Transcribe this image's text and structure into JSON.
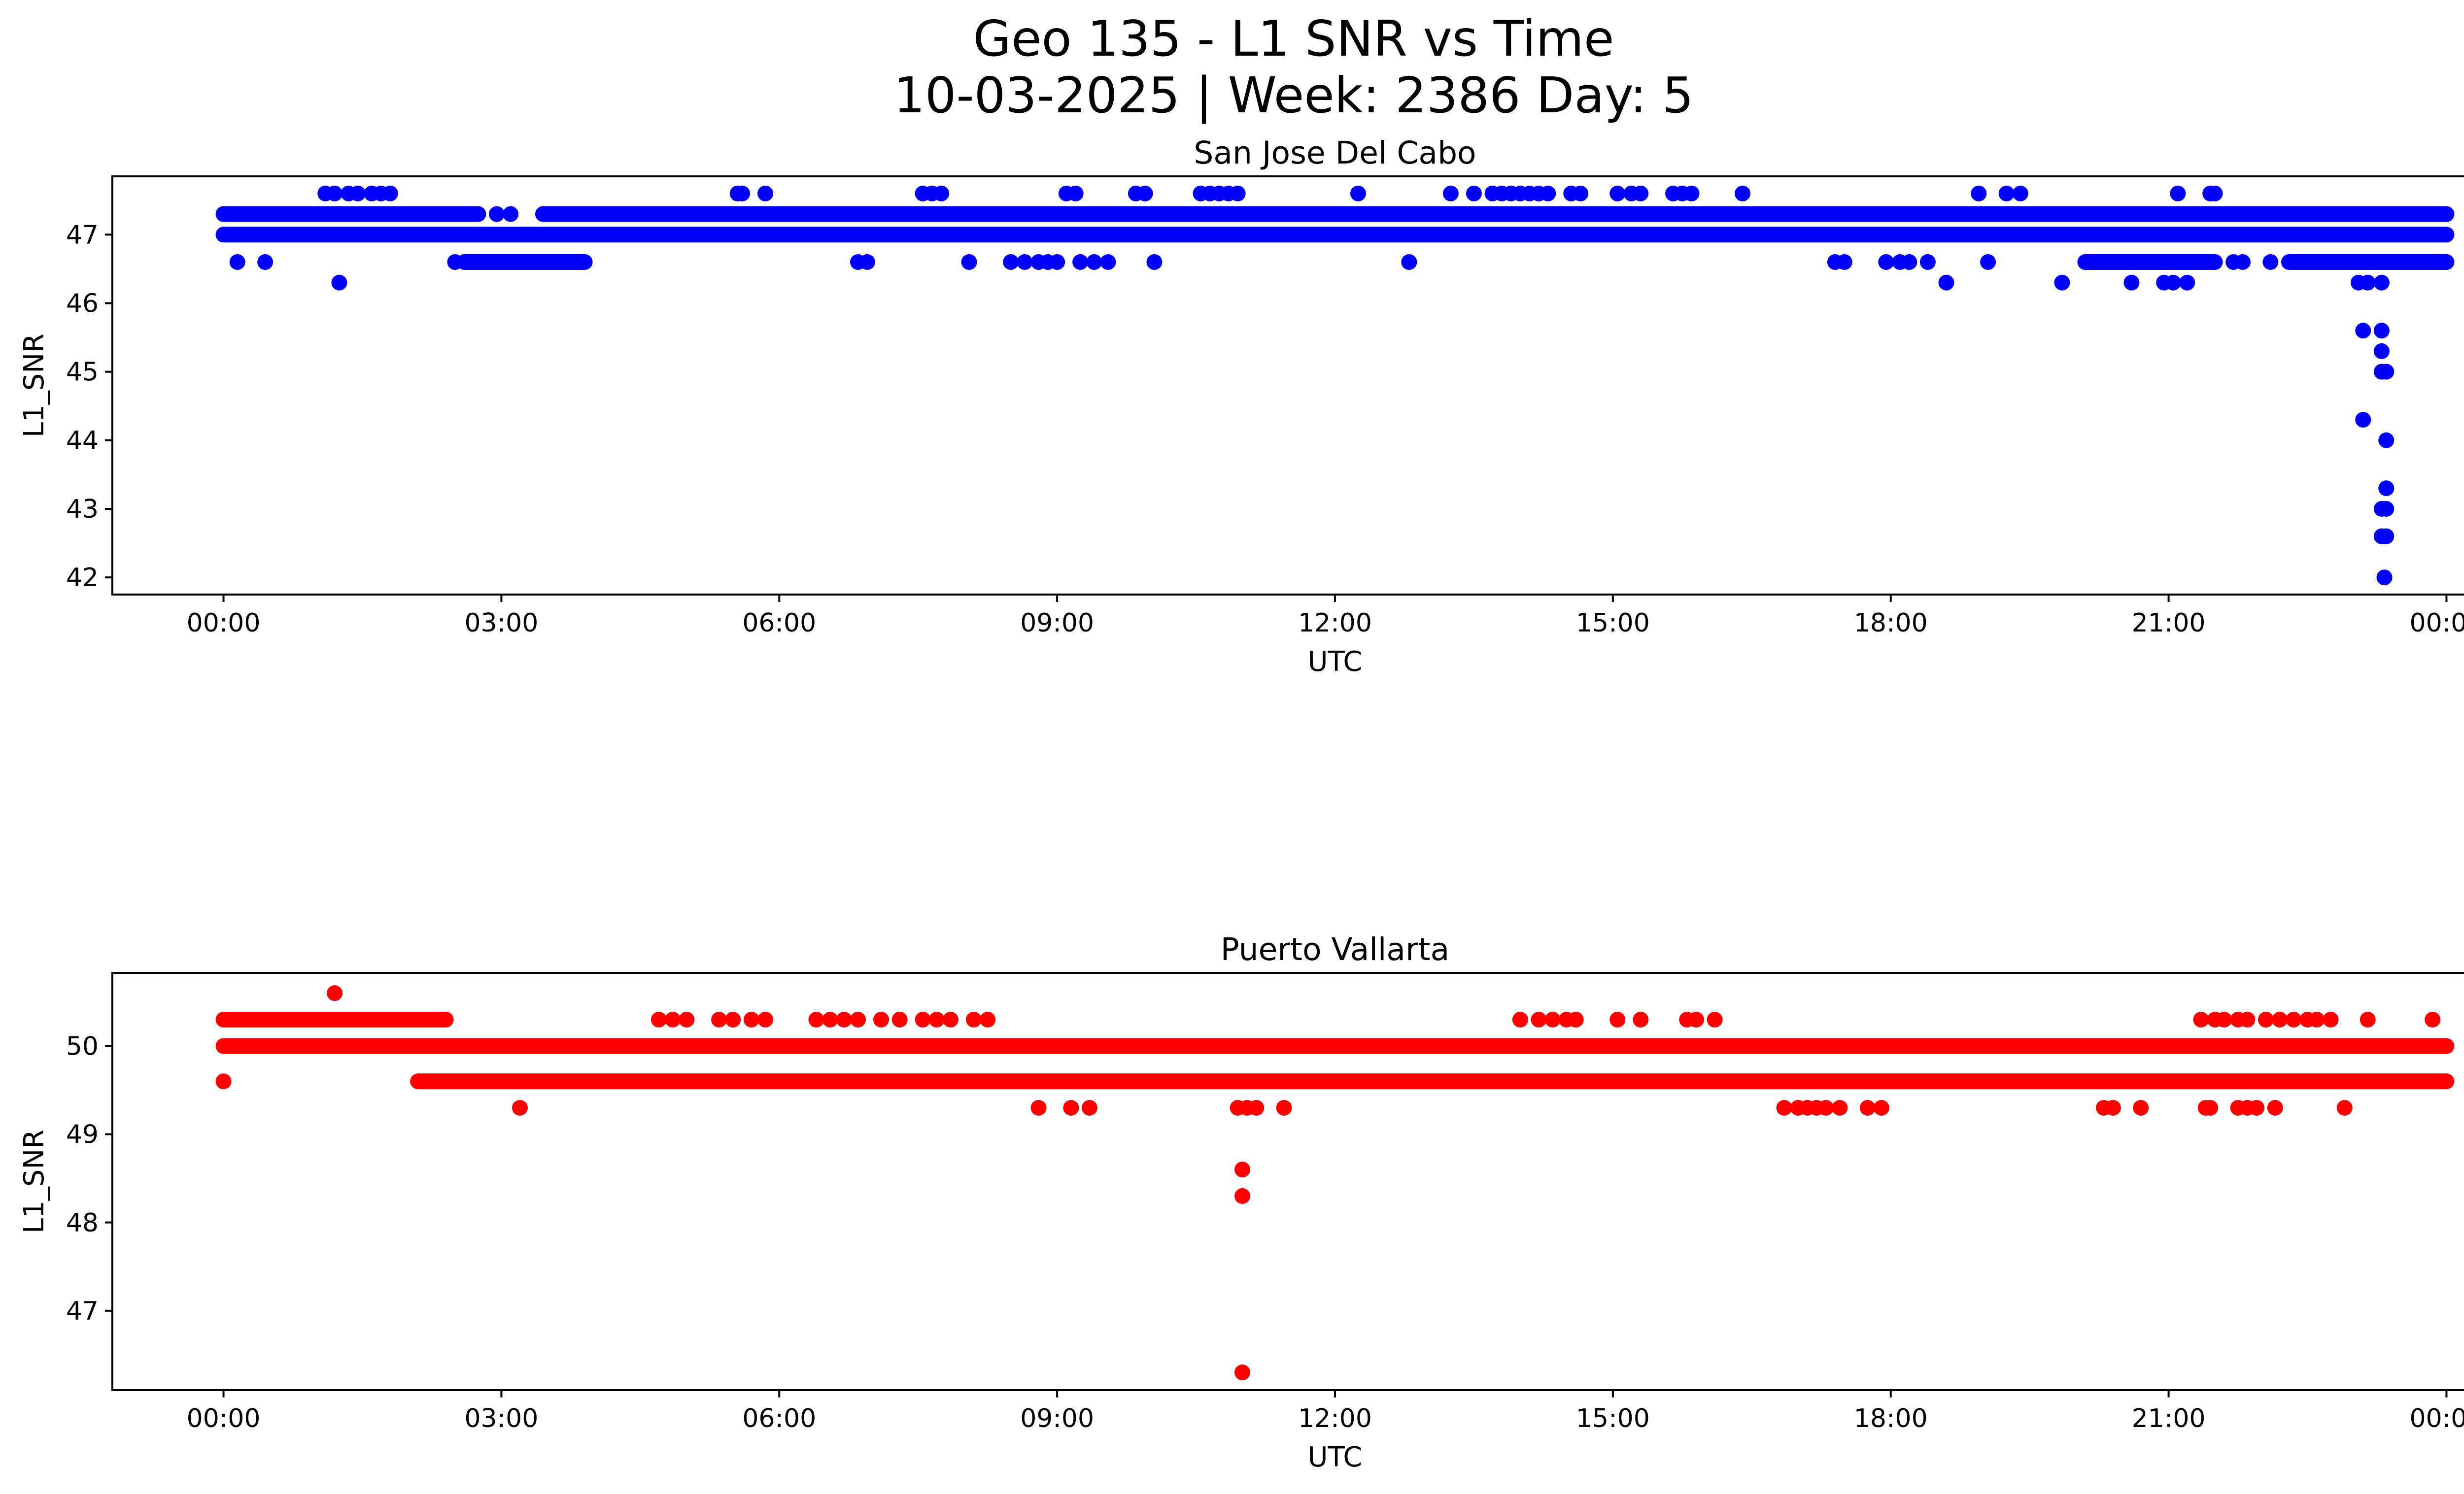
{
  "figure": {
    "title_line1": "Geo 135 - L1 SNR vs Time",
    "title_line2": "10-03-2025 | Week: 2386 Day: 5"
  },
  "chart_data": [
    {
      "type": "scatter",
      "title": "San Jose Del Cabo",
      "xlabel": "UTC",
      "ylabel": "L1_SNR",
      "color": "#0000ff",
      "xlim": [
        -1.2,
        25.2
      ],
      "ylim": [
        41.75,
        47.85
      ],
      "x_ticks": [
        0,
        3,
        6,
        9,
        12,
        15,
        18,
        21,
        24
      ],
      "x_tick_labels": [
        "00:00",
        "03:00",
        "06:00",
        "09:00",
        "12:00",
        "15:00",
        "18:00",
        "21:00",
        "00:00"
      ],
      "y_ticks": [
        42,
        43,
        44,
        45,
        46,
        47
      ],
      "y_tick_labels": [
        "42",
        "43",
        "44",
        "45",
        "46",
        "47"
      ],
      "bands": [
        {
          "y": 47.0,
          "from": 0.0,
          "to": 24.0
        },
        {
          "y": 47.3,
          "from": 0.0,
          "to": 2.75
        },
        {
          "y": 47.3,
          "from": 3.45,
          "to": 10.5
        },
        {
          "y": 47.3,
          "from": 10.5,
          "to": 24.0
        },
        {
          "y": 46.6,
          "from": 2.6,
          "to": 3.9
        },
        {
          "y": 46.6,
          "from": 20.1,
          "to": 21.5
        },
        {
          "y": 46.6,
          "from": 22.3,
          "to": 24.0
        }
      ],
      "points": [
        {
          "x": 0.15,
          "y": 46.6
        },
        {
          "x": 0.45,
          "y": 46.6
        },
        {
          "x": 1.1,
          "y": 47.6
        },
        {
          "x": 1.2,
          "y": 47.6
        },
        {
          "x": 1.25,
          "y": 46.3
        },
        {
          "x": 1.35,
          "y": 47.6
        },
        {
          "x": 1.45,
          "y": 47.6
        },
        {
          "x": 1.6,
          "y": 47.6
        },
        {
          "x": 1.7,
          "y": 47.6
        },
        {
          "x": 1.8,
          "y": 47.6
        },
        {
          "x": 2.5,
          "y": 46.6
        },
        {
          "x": 2.95,
          "y": 47.3
        },
        {
          "x": 3.1,
          "y": 47.3
        },
        {
          "x": 5.55,
          "y": 47.6
        },
        {
          "x": 5.6,
          "y": 47.6
        },
        {
          "x": 5.85,
          "y": 47.6
        },
        {
          "x": 6.85,
          "y": 46.6
        },
        {
          "x": 6.95,
          "y": 46.6
        },
        {
          "x": 7.55,
          "y": 47.6
        },
        {
          "x": 7.65,
          "y": 47.6
        },
        {
          "x": 7.75,
          "y": 47.6
        },
        {
          "x": 8.05,
          "y": 46.6
        },
        {
          "x": 8.5,
          "y": 46.6
        },
        {
          "x": 8.65,
          "y": 46.6
        },
        {
          "x": 8.8,
          "y": 46.6
        },
        {
          "x": 8.9,
          "y": 46.6
        },
        {
          "x": 9.0,
          "y": 46.6
        },
        {
          "x": 9.1,
          "y": 47.6
        },
        {
          "x": 9.2,
          "y": 47.6
        },
        {
          "x": 9.25,
          "y": 46.6
        },
        {
          "x": 9.4,
          "y": 46.6
        },
        {
          "x": 9.55,
          "y": 46.6
        },
        {
          "x": 9.85,
          "y": 47.6
        },
        {
          "x": 9.95,
          "y": 47.6
        },
        {
          "x": 10.05,
          "y": 46.6
        },
        {
          "x": 10.55,
          "y": 47.6
        },
        {
          "x": 10.65,
          "y": 47.6
        },
        {
          "x": 10.75,
          "y": 47.6
        },
        {
          "x": 10.85,
          "y": 47.6
        },
        {
          "x": 10.95,
          "y": 47.6
        },
        {
          "x": 12.25,
          "y": 47.6
        },
        {
          "x": 12.8,
          "y": 46.6
        },
        {
          "x": 13.25,
          "y": 47.6
        },
        {
          "x": 13.5,
          "y": 47.6
        },
        {
          "x": 13.7,
          "y": 47.6
        },
        {
          "x": 13.8,
          "y": 47.6
        },
        {
          "x": 13.9,
          "y": 47.6
        },
        {
          "x": 14.0,
          "y": 47.6
        },
        {
          "x": 14.1,
          "y": 47.6
        },
        {
          "x": 14.2,
          "y": 47.6
        },
        {
          "x": 14.3,
          "y": 47.6
        },
        {
          "x": 14.55,
          "y": 47.6
        },
        {
          "x": 14.65,
          "y": 47.6
        },
        {
          "x": 15.05,
          "y": 47.6
        },
        {
          "x": 15.2,
          "y": 47.6
        },
        {
          "x": 15.3,
          "y": 47.6
        },
        {
          "x": 15.65,
          "y": 47.6
        },
        {
          "x": 15.75,
          "y": 47.6
        },
        {
          "x": 15.85,
          "y": 47.6
        },
        {
          "x": 16.4,
          "y": 47.6
        },
        {
          "x": 17.4,
          "y": 46.6
        },
        {
          "x": 17.5,
          "y": 46.6
        },
        {
          "x": 17.95,
          "y": 46.6
        },
        {
          "x": 18.1,
          "y": 46.6
        },
        {
          "x": 18.2,
          "y": 46.6
        },
        {
          "x": 18.4,
          "y": 46.6
        },
        {
          "x": 18.6,
          "y": 46.3
        },
        {
          "x": 18.95,
          "y": 47.6
        },
        {
          "x": 19.05,
          "y": 46.6
        },
        {
          "x": 19.25,
          "y": 47.6
        },
        {
          "x": 19.4,
          "y": 47.6
        },
        {
          "x": 19.85,
          "y": 46.3
        },
        {
          "x": 20.6,
          "y": 46.3
        },
        {
          "x": 20.95,
          "y": 46.3
        },
        {
          "x": 21.05,
          "y": 46.3
        },
        {
          "x": 21.1,
          "y": 47.6
        },
        {
          "x": 21.2,
          "y": 46.3
        },
        {
          "x": 21.45,
          "y": 47.6
        },
        {
          "x": 21.5,
          "y": 47.6
        },
        {
          "x": 21.7,
          "y": 46.6
        },
        {
          "x": 21.8,
          "y": 46.6
        },
        {
          "x": 22.0,
          "y": 47.3
        },
        {
          "x": 22.1,
          "y": 46.6
        },
        {
          "x": 23.0,
          "y": 47.3
        },
        {
          "x": 23.05,
          "y": 46.3
        },
        {
          "x": 23.1,
          "y": 45.6
        },
        {
          "x": 23.1,
          "y": 44.3
        },
        {
          "x": 23.15,
          "y": 46.3
        },
        {
          "x": 23.2,
          "y": 47.3
        },
        {
          "x": 23.3,
          "y": 46.3
        },
        {
          "x": 23.3,
          "y": 45.6
        },
        {
          "x": 23.3,
          "y": 45.3
        },
        {
          "x": 23.3,
          "y": 45.0
        },
        {
          "x": 23.3,
          "y": 43.0
        },
        {
          "x": 23.3,
          "y": 42.6
        },
        {
          "x": 23.33,
          "y": 42.0
        },
        {
          "x": 23.35,
          "y": 45.0
        },
        {
          "x": 23.35,
          "y": 44.0
        },
        {
          "x": 23.35,
          "y": 43.3
        },
        {
          "x": 23.35,
          "y": 43.0
        },
        {
          "x": 23.35,
          "y": 42.6
        },
        {
          "x": 23.4,
          "y": 47.3
        },
        {
          "x": 23.55,
          "y": 47.3
        },
        {
          "x": 23.85,
          "y": 47.3
        },
        {
          "x": 23.95,
          "y": 47.3
        }
      ]
    },
    {
      "type": "scatter",
      "title": "Puerto Vallarta",
      "xlabel": "UTC",
      "ylabel": "L1_SNR",
      "color": "#ff0000",
      "xlim": [
        -1.2,
        25.2
      ],
      "ylim": [
        46.1,
        50.83
      ],
      "x_ticks": [
        0,
        3,
        6,
        9,
        12,
        15,
        18,
        21,
        24
      ],
      "x_tick_labels": [
        "00:00",
        "03:00",
        "06:00",
        "09:00",
        "12:00",
        "15:00",
        "18:00",
        "21:00",
        "00:00"
      ],
      "y_ticks": [
        47,
        48,
        49,
        50
      ],
      "y_tick_labels": [
        "47",
        "48",
        "49",
        "50"
      ],
      "bands": [
        {
          "y": 50.0,
          "from": 0.0,
          "to": 24.0
        },
        {
          "y": 50.3,
          "from": 0.0,
          "to": 2.4
        },
        {
          "y": 49.6,
          "from": 2.1,
          "to": 24.0
        }
      ],
      "points": [
        {
          "x": 0.0,
          "y": 49.6
        },
        {
          "x": 1.2,
          "y": 50.6
        },
        {
          "x": 3.2,
          "y": 49.3
        },
        {
          "x": 4.7,
          "y": 50.3
        },
        {
          "x": 4.85,
          "y": 50.3
        },
        {
          "x": 5.0,
          "y": 50.3
        },
        {
          "x": 5.35,
          "y": 50.3
        },
        {
          "x": 5.5,
          "y": 50.3
        },
        {
          "x": 5.7,
          "y": 50.3
        },
        {
          "x": 5.85,
          "y": 50.3
        },
        {
          "x": 6.4,
          "y": 50.3
        },
        {
          "x": 6.55,
          "y": 50.3
        },
        {
          "x": 6.7,
          "y": 50.3
        },
        {
          "x": 6.85,
          "y": 50.3
        },
        {
          "x": 7.1,
          "y": 50.3
        },
        {
          "x": 7.3,
          "y": 50.3
        },
        {
          "x": 7.55,
          "y": 50.3
        },
        {
          "x": 7.7,
          "y": 50.3
        },
        {
          "x": 7.85,
          "y": 50.3
        },
        {
          "x": 8.1,
          "y": 50.3
        },
        {
          "x": 8.25,
          "y": 50.3
        },
        {
          "x": 8.8,
          "y": 49.3
        },
        {
          "x": 9.15,
          "y": 49.3
        },
        {
          "x": 9.35,
          "y": 49.3
        },
        {
          "x": 10.95,
          "y": 49.3
        },
        {
          "x": 11.05,
          "y": 49.3
        },
        {
          "x": 11.15,
          "y": 49.3
        },
        {
          "x": 11.0,
          "y": 48.6
        },
        {
          "x": 11.0,
          "y": 48.3
        },
        {
          "x": 11.0,
          "y": 46.3
        },
        {
          "x": 11.45,
          "y": 49.3
        },
        {
          "x": 14.0,
          "y": 50.3
        },
        {
          "x": 14.2,
          "y": 50.3
        },
        {
          "x": 14.35,
          "y": 50.3
        },
        {
          "x": 14.5,
          "y": 50.3
        },
        {
          "x": 14.6,
          "y": 50.3
        },
        {
          "x": 15.05,
          "y": 50.3
        },
        {
          "x": 15.3,
          "y": 50.3
        },
        {
          "x": 15.8,
          "y": 50.3
        },
        {
          "x": 15.9,
          "y": 50.3
        },
        {
          "x": 16.1,
          "y": 50.3
        },
        {
          "x": 16.85,
          "y": 49.3
        },
        {
          "x": 17.0,
          "y": 49.3
        },
        {
          "x": 17.1,
          "y": 49.3
        },
        {
          "x": 17.2,
          "y": 49.3
        },
        {
          "x": 17.3,
          "y": 49.3
        },
        {
          "x": 17.45,
          "y": 49.3
        },
        {
          "x": 17.75,
          "y": 49.3
        },
        {
          "x": 17.9,
          "y": 49.3
        },
        {
          "x": 20.3,
          "y": 49.3
        },
        {
          "x": 20.4,
          "y": 49.3
        },
        {
          "x": 20.7,
          "y": 49.3
        },
        {
          "x": 21.35,
          "y": 50.3
        },
        {
          "x": 21.5,
          "y": 50.3
        },
        {
          "x": 21.6,
          "y": 50.3
        },
        {
          "x": 21.75,
          "y": 50.3
        },
        {
          "x": 21.85,
          "y": 50.3
        },
        {
          "x": 21.4,
          "y": 49.3
        },
        {
          "x": 21.45,
          "y": 49.3
        },
        {
          "x": 21.75,
          "y": 49.3
        },
        {
          "x": 21.85,
          "y": 49.3
        },
        {
          "x": 21.95,
          "y": 49.3
        },
        {
          "x": 22.15,
          "y": 49.3
        },
        {
          "x": 22.05,
          "y": 50.3
        },
        {
          "x": 22.2,
          "y": 50.3
        },
        {
          "x": 22.35,
          "y": 50.3
        },
        {
          "x": 22.5,
          "y": 50.3
        },
        {
          "x": 22.6,
          "y": 50.3
        },
        {
          "x": 22.75,
          "y": 50.3
        },
        {
          "x": 22.9,
          "y": 49.3
        },
        {
          "x": 23.15,
          "y": 50.3
        },
        {
          "x": 23.85,
          "y": 50.3
        }
      ]
    }
  ]
}
